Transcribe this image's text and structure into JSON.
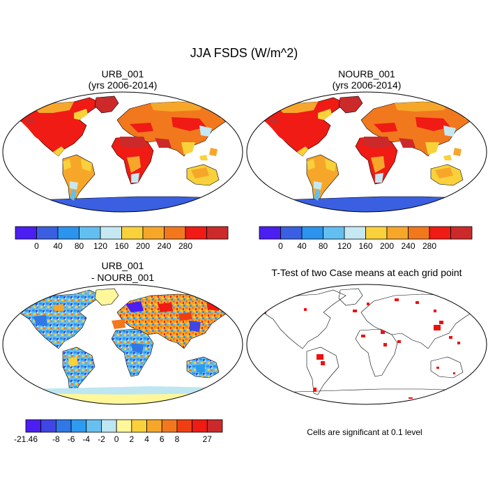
{
  "title": "JJA FSDS (W/m^2)",
  "panels": [
    {
      "title_line1": "URB_001",
      "title_line2": "(yrs 2006-2014)"
    },
    {
      "title_line1": "NOURB_001",
      "title_line2": "(yrs 2006-2014)"
    },
    {
      "title_line1": "URB_001",
      "title_line2": "- NOURB_001"
    },
    {
      "title_line1": "T-Test of two Case means at each grid point",
      "title_line2": ""
    }
  ],
  "footnote": "Cells are significant at 0.1 level",
  "chart_data": [
    {
      "type": "heatmap",
      "title": "URB_001 (yrs 2006-2014)",
      "colorbar": {
        "labels": [
          "0",
          "40",
          "80",
          "120",
          "160",
          "200",
          "240",
          "280"
        ],
        "colors": [
          "#4b1ef2",
          "#3a5fe0",
          "#2b94ee",
          "#62bff0",
          "#c6e8f2",
          "#f9d13a",
          "#f6a72a",
          "#f2781d",
          "#ef1b14",
          "#cc2a2a"
        ]
      }
    },
    {
      "type": "heatmap",
      "title": "NOURB_001 (yrs 2006-2014)",
      "colorbar": {
        "labels": [
          "0",
          "40",
          "80",
          "120",
          "160",
          "200",
          "240",
          "280"
        ],
        "colors": [
          "#4b1ef2",
          "#3a5fe0",
          "#2b94ee",
          "#62bff0",
          "#c6e8f2",
          "#f9d13a",
          "#f6a72a",
          "#f2781d",
          "#ef1b14",
          "#cc2a2a"
        ]
      }
    },
    {
      "type": "heatmap",
      "title": "URB_001 - NOURB_001",
      "colorbar": {
        "labels": [
          "-21.46",
          "-8",
          "-6",
          "-4",
          "-2",
          "0",
          "2",
          "4",
          "6",
          "8",
          "27"
        ],
        "colors": [
          "#4b1ef2",
          "#3f46e4",
          "#2f78e6",
          "#2d9cf0",
          "#68c0f0",
          "#bde6f1",
          "#fff79a",
          "#f9d13a",
          "#f6a72a",
          "#f2781d",
          "#ef3f12",
          "#ef1b14",
          "#cc2a2a"
        ]
      }
    },
    {
      "type": "heatmap",
      "title": "T-Test of two Case means at each grid point",
      "significance_color": "#ee1111"
    }
  ]
}
